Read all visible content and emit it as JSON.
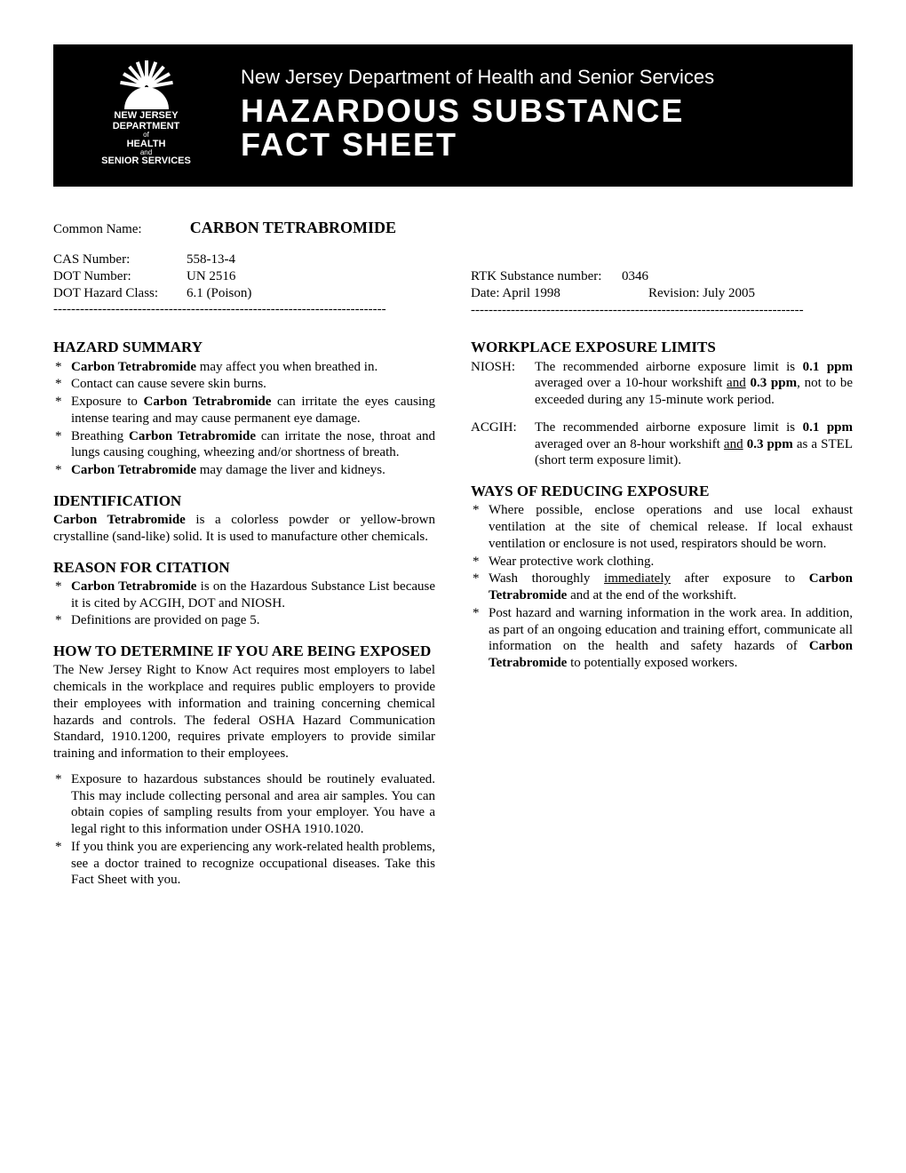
{
  "banner": {
    "org_line": "New Jersey Department of Health and Senior Services",
    "title_line1": "HAZARDOUS SUBSTANCE",
    "title_line2": "FACT SHEET",
    "logo": {
      "line1": "NEW JERSEY",
      "line2": "DEPARTMENT",
      "of": "of",
      "line3": "HEALTH",
      "and": "and",
      "line4": "SENIOR SERVICES"
    }
  },
  "meta": {
    "common_name_label": "Common Name:",
    "common_name": "CARBON TETRABROMIDE",
    "left": {
      "cas_label": "CAS Number:",
      "cas": "558-13-4",
      "dot_label": "DOT Number:",
      "dot": "UN 2516",
      "hazard_class_label": "DOT Hazard Class:",
      "hazard_class": "6.1 (Poison)"
    },
    "right": {
      "rtk_label": "RTK Substance number:",
      "rtk": "0346",
      "date_label": "Date:  April 1998",
      "revision_label": "Revision:  July 2005"
    },
    "rule": "- - - - - - - - - - - - - - - - - - - - - - - - - - - - - - - - - - - - - - - - - - - - - - - - -"
  },
  "left_col": {
    "hazard_summary": {
      "title": "HAZARD SUMMARY",
      "items": [
        "<b>Carbon Tetrabromide</b> may affect you when breathed in.",
        "Contact can cause severe skin burns.",
        "Exposure to <b>Carbon Tetrabromide</b> can irritate the eyes causing intense tearing and may cause permanent eye damage.",
        "Breathing <b>Carbon Tetrabromide</b> can irritate the nose, throat and lungs causing coughing, wheezing and/or shortness of breath.",
        "<b>Carbon Tetrabromide</b> may damage the liver and kidneys."
      ]
    },
    "identification": {
      "title": "IDENTIFICATION",
      "body": "<b>Carbon Tetrabromide</b> is a colorless powder or yellow-brown crystalline (sand-like) solid.  It is used to manufacture other chemicals."
    },
    "reason": {
      "title": "REASON FOR CITATION",
      "items": [
        "<b>Carbon Tetrabromide</b> is on the Hazardous Substance List because it is cited by ACGIH, DOT and NIOSH.",
        "Definitions are provided on page 5."
      ]
    },
    "determine": {
      "title": "HOW TO DETERMINE IF YOU ARE BEING EXPOSED",
      "body": "The New Jersey Right to Know Act requires most employers to label chemicals in the workplace and requires public employers to provide their employees with information and training concerning chemical hazards and controls.  The federal OSHA Hazard Communication Standard, 1910.1200, requires private employers to provide similar training and information to their employees.",
      "items": [
        "Exposure to hazardous substances should be routinely evaluated. This may include collecting personal and area air samples.  You can obtain copies of sampling results from your employer. You have a legal right to this information under OSHA 1910.1020.",
        "If you think you are experiencing any work-related health problems, see a doctor trained to recognize occupational diseases.  Take this Fact Sheet with you."
      ]
    }
  },
  "right_col": {
    "limits": {
      "title": "WORKPLACE EXPOSURE LIMITS",
      "niosh_label": "NIOSH:",
      "niosh": "The recommended airborne exposure limit is <b>0.1 ppm</b> averaged over a 10-hour workshift <u>and</u> <b>0.3 ppm</b>, not to be exceeded during any 15-minute work period.",
      "acgih_label": "ACGIH:",
      "acgih": "The recommended airborne exposure limit is <b>0.1 ppm</b> averaged over an 8-hour workshift <u>and</u> <b>0.3 ppm</b> as a STEL (short term exposure limit)."
    },
    "reducing": {
      "title": "WAYS OF REDUCING EXPOSURE",
      "items": [
        "Where possible, enclose operations and use local exhaust ventilation at the site of chemical release.  If local exhaust ventilation or enclosure is not used, respirators should be worn.",
        "Wear protective work clothing.",
        "Wash thoroughly <u>immediately</u> after exposure to <b>Carbon Tetrabromide</b> and at the end of the workshift.",
        "Post hazard and warning information in the work area.  In addition, as part of an ongoing education and training effort, communicate all information on the health and safety hazards of <b>Carbon Tetrabromide</b> to potentially exposed workers."
      ]
    }
  }
}
